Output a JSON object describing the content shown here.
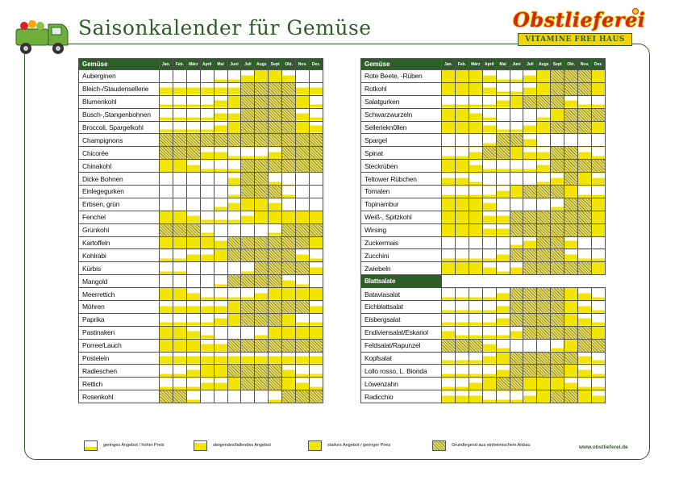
{
  "title": "Saisonkalender für Gemüse",
  "brand": {
    "name": "Obstlieferei",
    "tagline": "VITAMINE FREI HAUS"
  },
  "url": "www.obstlieferei.de",
  "months": [
    "Jan.",
    "Feb.",
    "März",
    "April",
    "Mai",
    "Juni",
    "Juli",
    "Augs",
    "Sept",
    "Okt.",
    "Nov.",
    "Dez."
  ],
  "colors": {
    "green": "#2f5d2a",
    "yellow": "#f2e600",
    "red": "#d6241c"
  },
  "legend": [
    {
      "level": 1,
      "label": "geringes Angebot / hoher Preis"
    },
    {
      "level": 2,
      "label": "steigendes/fallendes Angebot"
    },
    {
      "level": 3,
      "label": "starkes Angebot / geringer Preis"
    },
    {
      "level": 4,
      "label": "Grundlegend aus einheimischem Anbau"
    }
  ],
  "left": {
    "header": "Gemüse",
    "rows": [
      {
        "name": "Auberginen",
        "v": [
          0,
          0,
          0,
          0,
          1,
          1,
          2,
          3,
          3,
          2,
          0,
          0
        ]
      },
      {
        "name": "Bleich-/Staudensellerie",
        "v": [
          2,
          2,
          2,
          2,
          2,
          2,
          4,
          4,
          4,
          4,
          2,
          2
        ]
      },
      {
        "name": "Blumenkohl",
        "v": [
          1,
          1,
          1,
          1,
          2,
          3,
          4,
          4,
          4,
          4,
          3,
          1
        ]
      },
      {
        "name": "Busch-,Stangenbohnen",
        "v": [
          1,
          1,
          1,
          1,
          2,
          2,
          4,
          4,
          4,
          4,
          2,
          1
        ]
      },
      {
        "name": "Broccoli, Spargelkohl",
        "v": [
          1,
          1,
          1,
          1,
          2,
          3,
          4,
          4,
          4,
          4,
          3,
          2
        ]
      },
      {
        "name": "Champignons",
        "v": [
          4,
          4,
          4,
          4,
          4,
          4,
          4,
          4,
          4,
          4,
          4,
          4
        ]
      },
      {
        "name": "Chicorée",
        "v": [
          4,
          4,
          4,
          2,
          2,
          1,
          1,
          1,
          2,
          4,
          4,
          4
        ]
      },
      {
        "name": "Chinakohl",
        "v": [
          3,
          3,
          2,
          1,
          1,
          1,
          4,
          4,
          4,
          4,
          4,
          4
        ]
      },
      {
        "name": "Dicke Bohnen",
        "v": [
          0,
          0,
          0,
          0,
          0,
          2,
          4,
          4,
          1,
          0,
          0,
          0
        ]
      },
      {
        "name": "Einlegegurken",
        "v": [
          0,
          0,
          0,
          0,
          0,
          1,
          4,
          4,
          4,
          1,
          0,
          0
        ]
      },
      {
        "name": "Erbsen, grün",
        "v": [
          0,
          0,
          0,
          0,
          1,
          2,
          3,
          3,
          2,
          0,
          0,
          0
        ]
      },
      {
        "name": "Fenchel",
        "v": [
          3,
          3,
          2,
          1,
          1,
          1,
          2,
          3,
          3,
          3,
          3,
          3
        ]
      },
      {
        "name": "Grünkohl",
        "v": [
          4,
          4,
          4,
          1,
          0,
          0,
          0,
          0,
          1,
          4,
          4,
          4
        ]
      },
      {
        "name": "Kartoffeln",
        "v": [
          3,
          3,
          3,
          3,
          2,
          4,
          4,
          4,
          4,
          4,
          4,
          3
        ]
      },
      {
        "name": "Kohlrabi",
        "v": [
          1,
          1,
          2,
          2,
          3,
          4,
          4,
          4,
          4,
          4,
          2,
          1
        ]
      },
      {
        "name": "Kürbis",
        "v": [
          1,
          1,
          0,
          0,
          0,
          0,
          1,
          4,
          4,
          4,
          4,
          2
        ]
      },
      {
        "name": "Mangold",
        "v": [
          0,
          0,
          0,
          0,
          1,
          4,
          4,
          4,
          4,
          2,
          1,
          0
        ]
      },
      {
        "name": "Meerrettich",
        "v": [
          3,
          3,
          2,
          1,
          1,
          1,
          1,
          2,
          3,
          3,
          3,
          3
        ]
      },
      {
        "name": "Möhren",
        "v": [
          2,
          2,
          2,
          2,
          2,
          3,
          4,
          4,
          4,
          4,
          4,
          2
        ]
      },
      {
        "name": "Paprika",
        "v": [
          1,
          1,
          1,
          1,
          2,
          3,
          4,
          4,
          4,
          3,
          1,
          1
        ]
      },
      {
        "name": "Pastinaken",
        "v": [
          3,
          3,
          2,
          1,
          0,
          0,
          0,
          1,
          3,
          3,
          3,
          3
        ]
      },
      {
        "name": "Porree/Lauch",
        "v": [
          3,
          3,
          3,
          2,
          2,
          4,
          4,
          4,
          4,
          4,
          4,
          4
        ]
      },
      {
        "name": "Postelein",
        "v": [
          2,
          2,
          2,
          2,
          2,
          2,
          2,
          2,
          2,
          2,
          2,
          2
        ]
      },
      {
        "name": "Radieschen",
        "v": [
          1,
          1,
          2,
          3,
          3,
          4,
          4,
          4,
          4,
          2,
          1,
          1
        ]
      },
      {
        "name": "Rettich",
        "v": [
          1,
          1,
          1,
          2,
          2,
          3,
          4,
          4,
          4,
          3,
          2,
          1
        ]
      },
      {
        "name": "Rosenkohl",
        "v": [
          4,
          4,
          1,
          0,
          0,
          0,
          0,
          0,
          1,
          4,
          4,
          4
        ]
      }
    ]
  },
  "right": {
    "header": "Gemüse",
    "rows": [
      {
        "name": "Rote Beete, -Rüben",
        "v": [
          3,
          3,
          3,
          2,
          1,
          1,
          2,
          3,
          4,
          4,
          4,
          3
        ]
      },
      {
        "name": "Rotkohl",
        "v": [
          3,
          3,
          3,
          2,
          1,
          1,
          2,
          3,
          4,
          4,
          4,
          3
        ]
      },
      {
        "name": "Salatgurken",
        "v": [
          1,
          1,
          1,
          1,
          2,
          3,
          4,
          4,
          4,
          2,
          1,
          1
        ]
      },
      {
        "name": "Schwarzwurzeln",
        "v": [
          3,
          3,
          2,
          1,
          0,
          0,
          0,
          1,
          3,
          4,
          4,
          4
        ]
      },
      {
        "name": "Selleriekn0llen",
        "v": [
          3,
          3,
          3,
          2,
          1,
          1,
          2,
          3,
          4,
          4,
          4,
          3
        ]
      },
      {
        "name": "Spargel",
        "v": [
          0,
          0,
          0,
          1,
          4,
          4,
          2,
          0,
          0,
          0,
          0,
          0
        ]
      },
      {
        "name": "Spinat",
        "v": [
          1,
          1,
          2,
          4,
          4,
          3,
          2,
          2,
          4,
          4,
          2,
          1
        ]
      },
      {
        "name": "Steckrüben",
        "v": [
          3,
          3,
          2,
          1,
          1,
          1,
          1,
          2,
          4,
          4,
          4,
          4
        ]
      },
      {
        "name": "Teltower Rübchen",
        "v": [
          2,
          2,
          1,
          0,
          0,
          0,
          0,
          1,
          2,
          4,
          3,
          2
        ]
      },
      {
        "name": "Tomaten",
        "v": [
          1,
          1,
          1,
          1,
          2,
          3,
          4,
          4,
          4,
          3,
          1,
          1
        ]
      },
      {
        "name": "Topinambur",
        "v": [
          3,
          3,
          3,
          2,
          0,
          0,
          0,
          0,
          1,
          4,
          4,
          3
        ]
      },
      {
        "name": "Weiß-, Spitzkohl",
        "v": [
          3,
          3,
          3,
          2,
          2,
          4,
          4,
          4,
          4,
          4,
          4,
          3
        ]
      },
      {
        "name": "Wirsing",
        "v": [
          3,
          3,
          3,
          2,
          2,
          4,
          4,
          4,
          4,
          4,
          4,
          3
        ]
      },
      {
        "name": "Zuckermais",
        "v": [
          0,
          0,
          0,
          0,
          0,
          1,
          2,
          4,
          4,
          2,
          0,
          0
        ]
      },
      {
        "name": "Zucchini",
        "v": [
          1,
          1,
          1,
          1,
          2,
          4,
          4,
          4,
          4,
          2,
          1,
          1
        ]
      },
      {
        "name": "Zwiebeln",
        "v": [
          3,
          3,
          3,
          2,
          1,
          2,
          4,
          4,
          4,
          4,
          4,
          3
        ]
      }
    ],
    "subheader": "Blattsalate",
    "subrows": [
      {
        "name": "Bataviasalat",
        "v": [
          1,
          1,
          1,
          1,
          2,
          4,
          4,
          4,
          4,
          3,
          2,
          1
        ]
      },
      {
        "name": "Eichblattsalat",
        "v": [
          1,
          1,
          1,
          1,
          2,
          4,
          4,
          4,
          4,
          3,
          2,
          1
        ]
      },
      {
        "name": "Eisbergsalat",
        "v": [
          1,
          1,
          1,
          1,
          2,
          4,
          4,
          4,
          4,
          3,
          2,
          1
        ]
      },
      {
        "name": "Endiviensalat/Eskariol",
        "v": [
          2,
          1,
          1,
          1,
          1,
          2,
          4,
          4,
          4,
          4,
          4,
          3
        ]
      },
      {
        "name": "Feldsalat/Rapunzel",
        "v": [
          4,
          4,
          4,
          2,
          1,
          0,
          0,
          0,
          1,
          3,
          4,
          4
        ]
      },
      {
        "name": "Kopfsalat",
        "v": [
          1,
          1,
          1,
          2,
          3,
          4,
          4,
          4,
          4,
          4,
          2,
          1
        ]
      },
      {
        "name": "Lollo rosso, L. Bionda",
        "v": [
          1,
          1,
          1,
          1,
          2,
          4,
          4,
          4,
          4,
          3,
          2,
          1
        ]
      },
      {
        "name": "Löwenzahn",
        "v": [
          1,
          1,
          2,
          3,
          4,
          4,
          3,
          3,
          3,
          2,
          1,
          1
        ]
      },
      {
        "name": "Radicchio",
        "v": [
          2,
          2,
          2,
          1,
          1,
          1,
          2,
          3,
          4,
          4,
          3,
          2
        ]
      }
    ]
  }
}
